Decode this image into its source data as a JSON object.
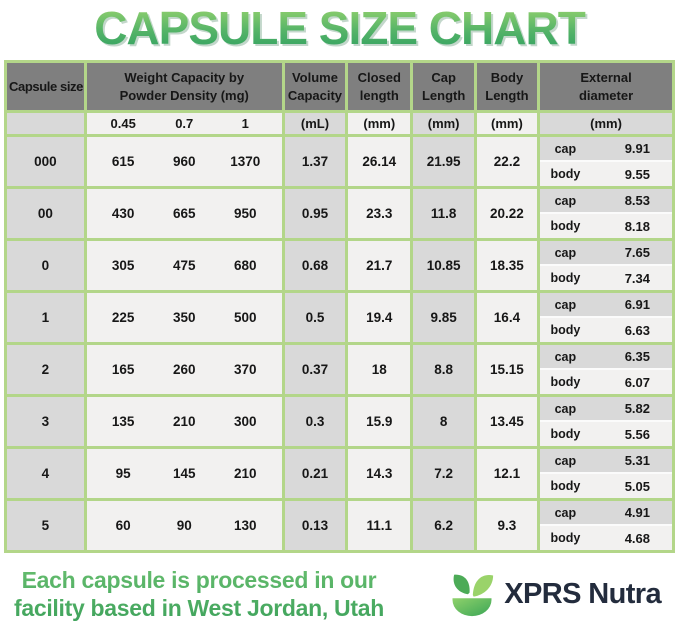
{
  "title": "CAPSULE SIZE CHART",
  "table": {
    "headers": {
      "capsule_size": "Capsule size",
      "weight_capacity": "Weight Capacity by Powder Density (mg)",
      "volume_capacity": "Volume Capacity",
      "closed_length": "Closed length",
      "cap_length": "Cap Length",
      "body_length": "Body Length",
      "external_diameter": "External diameter"
    },
    "units": {
      "density_045": "0.45",
      "density_07": "0.7",
      "density_1": "1",
      "volume": "(mL)",
      "closed": "(mm)",
      "cap": "(mm)",
      "body": "(mm)",
      "external": "(mm)"
    },
    "diameter_labels": {
      "cap": "cap",
      "body": "body"
    },
    "rows": [
      {
        "size": "000",
        "w045": "615",
        "w07": "960",
        "w1": "1370",
        "volume": "1.37",
        "closed": "26.14",
        "cap_len": "21.95",
        "body_len": "22.2",
        "cap_dia": "9.91",
        "body_dia": "9.55"
      },
      {
        "size": "00",
        "w045": "430",
        "w07": "665",
        "w1": "950",
        "volume": "0.95",
        "closed": "23.3",
        "cap_len": "11.8",
        "body_len": "20.22",
        "cap_dia": "8.53",
        "body_dia": "8.18"
      },
      {
        "size": "0",
        "w045": "305",
        "w07": "475",
        "w1": "680",
        "volume": "0.68",
        "closed": "21.7",
        "cap_len": "10.85",
        "body_len": "18.35",
        "cap_dia": "7.65",
        "body_dia": "7.34"
      },
      {
        "size": "1",
        "w045": "225",
        "w07": "350",
        "w1": "500",
        "volume": "0.5",
        "closed": "19.4",
        "cap_len": "9.85",
        "body_len": "16.4",
        "cap_dia": "6.91",
        "body_dia": "6.63"
      },
      {
        "size": "2",
        "w045": "165",
        "w07": "260",
        "w1": "370",
        "volume": "0.37",
        "closed": "18",
        "cap_len": "8.8",
        "body_len": "15.15",
        "cap_dia": "6.35",
        "body_dia": "6.07"
      },
      {
        "size": "3",
        "w045": "135",
        "w07": "210",
        "w1": "300",
        "volume": "0.3",
        "closed": "15.9",
        "cap_len": "8",
        "body_len": "13.45",
        "cap_dia": "5.82",
        "body_dia": "5.56"
      },
      {
        "size": "4",
        "w045": "95",
        "w07": "145",
        "w1": "210",
        "volume": "0.21",
        "closed": "14.3",
        "cap_len": "7.2",
        "body_len": "12.1",
        "cap_dia": "5.31",
        "body_dia": "5.05"
      },
      {
        "size": "5",
        "w045": "60",
        "w07": "90",
        "w1": "130",
        "volume": "0.13",
        "closed": "11.1",
        "cap_len": "6.2",
        "body_len": "9.3",
        "cap_dia": "4.91",
        "body_dia": "4.68"
      }
    ]
  },
  "chart_data": {
    "type": "table",
    "title": "CAPSULE SIZE CHART",
    "columns": [
      "Capsule size",
      "Weight capacity at powder density 0.45 (mg)",
      "Weight capacity at powder density 0.7 (mg)",
      "Weight capacity at powder density 1 (mg)",
      "Volume capacity (mL)",
      "Closed length (mm)",
      "Cap length (mm)",
      "Body length (mm)",
      "External diameter cap (mm)",
      "External diameter body (mm)"
    ],
    "rows": [
      [
        "000",
        615,
        960,
        1370,
        1.37,
        26.14,
        21.95,
        22.2,
        9.91,
        9.55
      ],
      [
        "00",
        430,
        665,
        950,
        0.95,
        23.3,
        11.8,
        20.22,
        8.53,
        8.18
      ],
      [
        "0",
        305,
        475,
        680,
        0.68,
        21.7,
        10.85,
        18.35,
        7.65,
        7.34
      ],
      [
        "1",
        225,
        350,
        500,
        0.5,
        19.4,
        9.85,
        16.4,
        6.91,
        6.63
      ],
      [
        "2",
        165,
        260,
        370,
        0.37,
        18,
        8.8,
        15.15,
        6.35,
        6.07
      ],
      [
        "3",
        135,
        210,
        300,
        0.3,
        15.9,
        8,
        13.45,
        5.82,
        5.56
      ],
      [
        "4",
        95,
        145,
        210,
        0.21,
        14.3,
        7.2,
        12.1,
        5.31,
        5.05
      ],
      [
        "5",
        60,
        90,
        130,
        0.13,
        11.1,
        6.2,
        9.3,
        4.91,
        4.68
      ]
    ]
  },
  "footer": {
    "tagline_line1": "Each capsule is processed in our",
    "tagline_line2": "facility based in West Jordan, Utah",
    "brand_name": "XPRS Nutra",
    "brand_icon": "leaf-bowl-icon"
  },
  "colors": {
    "title_gradient_top": "#9ed66f",
    "title_gradient_bottom": "#2d9f60",
    "table_border_green": "#b3d689",
    "header_gray": "#7f7f7f",
    "cell_gray": "#d9d9d9",
    "cell_light": "#f2f1f0",
    "tagline_green": "#4fae62",
    "brand_navy": "#232c3d"
  }
}
